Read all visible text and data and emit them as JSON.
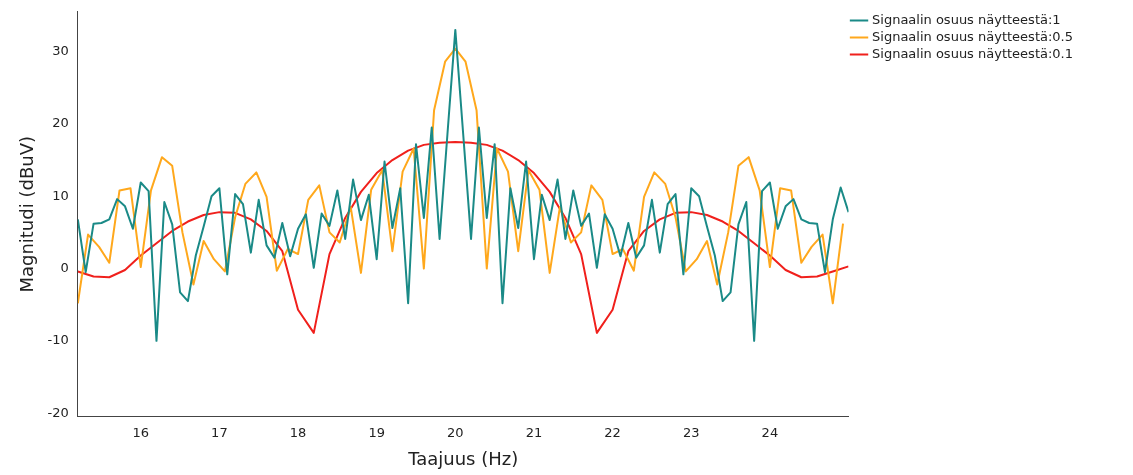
{
  "chart_data": {
    "type": "line",
    "xlabel": "Taajuus (Hz)",
    "ylabel": "Magnitudi (dBuV)",
    "xlim": [
      15.2,
      25.0
    ],
    "ylim": [
      -20.5,
      35.5
    ],
    "xticks": [
      16,
      17,
      18,
      19,
      20,
      21,
      22,
      23,
      24
    ],
    "yticks": [
      -20,
      -10,
      0,
      10,
      20,
      30
    ],
    "grid": false,
    "legend": "top right",
    "marker": "none",
    "line_style": "solid",
    "series": [
      {
        "name": "Signaalin osuus näytteestä:1",
        "color": "#1a8a87",
        "x": [
          15.2,
          15.3,
          15.4,
          15.5,
          15.6,
          15.7,
          15.8,
          15.9,
          16,
          16.1,
          16.2,
          16.3,
          16.4,
          16.5,
          16.6,
          16.7,
          16.8,
          16.9,
          17,
          17.1,
          17.2,
          17.3,
          17.4,
          17.5,
          17.6,
          17.7,
          17.8,
          17.9,
          18,
          18.1,
          18.2,
          18.3,
          18.4,
          18.5,
          18.6,
          18.7,
          18.8,
          18.9,
          19,
          19.1,
          19.2,
          19.3,
          19.4,
          19.5,
          19.6,
          19.7,
          19.8,
          19.9,
          20,
          20.1,
          20.2,
          20.3,
          20.4,
          20.5,
          20.6,
          20.7,
          20.8,
          20.9,
          21,
          21.1,
          21.2,
          21.3,
          21.4,
          21.5,
          21.6,
          21.7,
          21.8,
          21.9,
          22,
          22.1,
          22.2,
          22.3,
          22.4,
          22.5,
          22.6,
          22.7,
          22.8,
          22.9,
          23,
          23.1,
          23.2,
          23.3,
          23.4,
          23.5,
          23.6,
          23.7,
          23.8,
          23.9,
          24,
          24.1,
          24.2,
          24.3,
          24.4,
          24.5,
          24.6,
          24.7,
          24.8,
          24.9,
          25.0
        ],
        "values": [
          6.8,
          -0.5,
          6.2,
          6.3,
          6.8,
          9.6,
          8.6,
          5.5,
          11.9,
          10.7,
          -10,
          9.2,
          6.1,
          -3.3,
          -4.5,
          1.8,
          5.8,
          10,
          11.1,
          -0.8,
          10.3,
          8.9,
          2.2,
          9.5,
          3.2,
          1.5,
          6.3,
          1.7,
          5.5,
          7.5,
          0.1,
          7.6,
          5.9,
          10.8,
          4.1,
          12.3,
          6.7,
          10.2,
          1.3,
          14.8,
          5.6,
          11.1,
          -4.8,
          17.2,
          7,
          19.5,
          4.1,
          18.6,
          33,
          18.6,
          4.1,
          19.5,
          7,
          17.2,
          -4.8,
          11.1,
          5.6,
          14.8,
          1.3,
          10.2,
          6.7,
          12.3,
          4.1,
          10.8,
          5.9,
          7.6,
          0.1,
          7.5,
          5.5,
          1.7,
          6.3,
          1.5,
          3.2,
          9.5,
          2.2,
          8.9,
          10.3,
          -0.8,
          11.1,
          10,
          5.8,
          1.8,
          -4.5,
          -3.3,
          6.1,
          9.2,
          -10,
          10.7,
          11.9,
          5.5,
          8.6,
          9.6,
          6.8,
          6.3,
          6.2,
          -0.5,
          6.8,
          11.2,
          7.8
        ]
      },
      {
        "name": "Signaalin osuus näytteestä:0.5",
        "color": "#ffa81c",
        "x": [
          15.2,
          15.33,
          15.47,
          15.6,
          15.73,
          15.87,
          16,
          16.13,
          16.27,
          16.4,
          16.53,
          16.67,
          16.8,
          16.93,
          17.07,
          17.2,
          17.33,
          17.47,
          17.6,
          17.73,
          17.87,
          18,
          18.13,
          18.27,
          18.4,
          18.53,
          18.67,
          18.8,
          18.93,
          19.07,
          19.2,
          19.33,
          19.47,
          19.6,
          19.73,
          19.87,
          20,
          20.13,
          20.27,
          20.4,
          20.53,
          20.67,
          20.8,
          20.93,
          21.07,
          21.2,
          21.33,
          21.47,
          21.6,
          21.73,
          21.87,
          22,
          22.13,
          22.27,
          22.4,
          22.53,
          22.67,
          22.8,
          22.93,
          23.07,
          23.2,
          23.33,
          23.47,
          23.6,
          23.73,
          23.87,
          24,
          24.13,
          24.27,
          24.4,
          24.53,
          24.67,
          24.8,
          24.93
        ],
        "values": [
          -4.8,
          4.7,
          3,
          0.8,
          10.8,
          11.1,
          0.2,
          10.8,
          15.4,
          14.2,
          5,
          -2.2,
          3.8,
          1.3,
          -0.4,
          7.1,
          11.7,
          13.3,
          9.9,
          -0.3,
          2.7,
          2,
          9.5,
          11.5,
          5,
          3.6,
          8.5,
          -0.6,
          10.9,
          13.6,
          2.4,
          13.4,
          16.6,
          0,
          21.9,
          28.6,
          30.4,
          28.6,
          21.9,
          0,
          16.6,
          13.4,
          2.4,
          13.6,
          10.9,
          -0.6,
          8.5,
          3.6,
          5,
          11.5,
          9.5,
          2,
          2.7,
          -0.3,
          9.9,
          13.3,
          11.7,
          7.1,
          -0.4,
          1.3,
          3.8,
          -2.2,
          5,
          14.2,
          15.4,
          10.8,
          0.2,
          11.1,
          10.8,
          0.8,
          3,
          4.7,
          -4.8,
          6.2
        ]
      },
      {
        "name": "Signaalin osuus näytteestä:0.1",
        "color": "#f0201c",
        "x": [
          15.2,
          15.4,
          15.6,
          15.8,
          16,
          16.2,
          16.4,
          16.6,
          16.8,
          17,
          17.2,
          17.4,
          17.6,
          17.8,
          18,
          18.2,
          18.4,
          18.6,
          18.8,
          19,
          19.2,
          19.4,
          19.6,
          19.8,
          20,
          20.2,
          20.4,
          20.6,
          20.8,
          21,
          21.2,
          21.4,
          21.6,
          21.8,
          22,
          22.2,
          22.4,
          22.6,
          22.8,
          23,
          23.2,
          23.4,
          23.6,
          23.8,
          24,
          24.2,
          24.4,
          24.6,
          24.8,
          25.0
        ],
        "values": [
          -0.4,
          -1.1,
          -1.2,
          -0.2,
          1.8,
          3.5,
          5.2,
          6.5,
          7.4,
          7.8,
          7.7,
          6.8,
          5.2,
          2.4,
          -5.7,
          -8.9,
          2.0,
          7.0,
          10.6,
          13.2,
          15.0,
          16.3,
          17.1,
          17.4,
          17.5,
          17.4,
          17.1,
          16.3,
          15.0,
          13.2,
          10.6,
          7.0,
          2.0,
          -8.9,
          -5.7,
          2.4,
          5.2,
          6.8,
          7.7,
          7.8,
          7.4,
          6.5,
          5.2,
          3.5,
          1.8,
          -0.2,
          -1.2,
          -1.1,
          -0.4,
          0.3
        ]
      }
    ]
  }
}
